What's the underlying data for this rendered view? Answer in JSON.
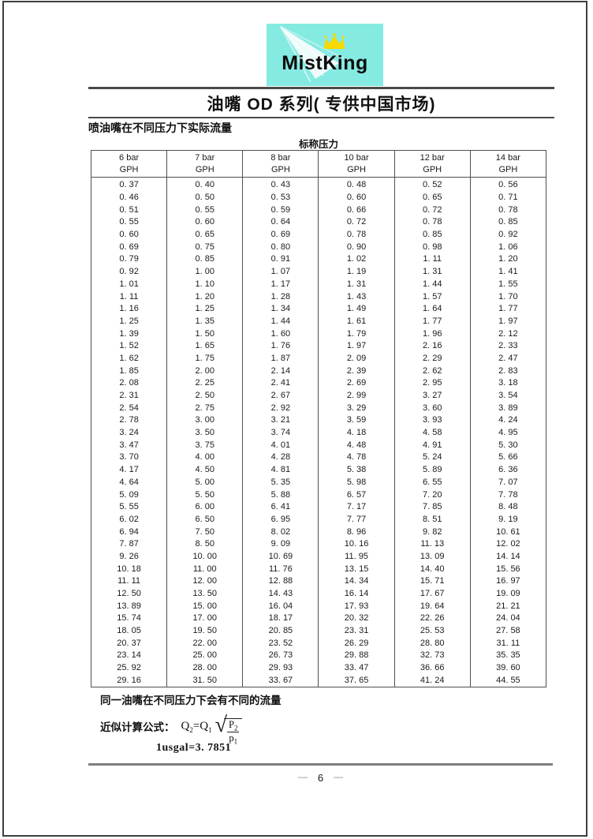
{
  "logo": {
    "brand": "MistKing",
    "bg_color": "#85eae2",
    "crown_color": "#f7d900",
    "icons": [
      "mist-spray-icon",
      "crown-icon"
    ]
  },
  "title": "油嘴 OD 系列( 专供中国市场)",
  "subtitle": "喷油嘴在不同压力下实际流量",
  "table": {
    "caption": "标称压力",
    "columns": [
      {
        "pressure": "6 bar",
        "unit": "GPH"
      },
      {
        "pressure": "7 bar",
        "unit": "GPH"
      },
      {
        "pressure": "8 bar",
        "unit": "GPH"
      },
      {
        "pressure": "10 bar",
        "unit": "GPH"
      },
      {
        "pressure": "12 bar",
        "unit": "GPH"
      },
      {
        "pressure": "14 bar",
        "unit": "GPH"
      }
    ],
    "rows": [
      [
        "0. 37",
        "0. 40",
        "0. 43",
        "0. 48",
        "0. 52",
        "0. 56"
      ],
      [
        "0. 46",
        "0. 50",
        "0. 53",
        "0. 60",
        "0. 65",
        "0. 71"
      ],
      [
        "0. 51",
        "0. 55",
        "0. 59",
        "0. 66",
        "0. 72",
        "0. 78"
      ],
      [
        "0. 55",
        "0. 60",
        "0. 64",
        "0. 72",
        "0. 78",
        "0. 85"
      ],
      [
        "0. 60",
        "0. 65",
        "0. 69",
        "0. 78",
        "0. 85",
        "0. 92"
      ],
      [
        "0. 69",
        "0. 75",
        "0. 80",
        "0. 90",
        "0. 98",
        "1. 06"
      ],
      [
        "0. 79",
        "0. 85",
        "0. 91",
        "1. 02",
        "1. 11",
        "1. 20"
      ],
      [
        "0. 92",
        "1. 00",
        "1. 07",
        "1. 19",
        "1. 31",
        "1. 41"
      ],
      [
        "1. 01",
        "1. 10",
        "1. 17",
        "1. 31",
        "1. 44",
        "1. 55"
      ],
      [
        "1. 11",
        "1. 20",
        "1. 28",
        "1. 43",
        "1. 57",
        "1. 70"
      ],
      [
        "1. 16",
        "1. 25",
        "1. 34",
        "1. 49",
        "1. 64",
        "1. 77"
      ],
      [
        "1. 25",
        "1. 35",
        "1. 44",
        "1. 61",
        "1. 77",
        "1. 97"
      ],
      [
        "1. 39",
        "1. 50",
        "1. 60",
        "1. 79",
        "1. 96",
        "2. 12"
      ],
      [
        "1. 52",
        "1. 65",
        "1. 76",
        "1. 97",
        "2. 16",
        "2. 33"
      ],
      [
        "1. 62",
        "1. 75",
        "1. 87",
        "2. 09",
        "2. 29",
        "2. 47"
      ],
      [
        "1. 85",
        "2. 00",
        "2. 14",
        "2. 39",
        "2. 62",
        "2. 83"
      ],
      [
        "2. 08",
        "2. 25",
        "2. 41",
        "2. 69",
        "2. 95",
        "3. 18"
      ],
      [
        "2. 31",
        "2. 50",
        "2. 67",
        "2. 99",
        "3. 27",
        "3. 54"
      ],
      [
        "2. 54",
        "2. 75",
        "2. 92",
        "3. 29",
        "3. 60",
        "3. 89"
      ],
      [
        "2. 78",
        "3. 00",
        "3. 21",
        "3. 59",
        "3. 93",
        "4. 24"
      ],
      [
        "3. 24",
        "3. 50",
        "3. 74",
        "4. 18",
        "4. 58",
        "4. 95"
      ],
      [
        "3. 47",
        "3. 75",
        "4. 01",
        "4. 48",
        "4. 91",
        "5. 30"
      ],
      [
        "3. 70",
        "4. 00",
        "4. 28",
        "4. 78",
        "5. 24",
        "5. 66"
      ],
      [
        "4. 17",
        "4. 50",
        "4. 81",
        "5. 38",
        "5. 89",
        "6. 36"
      ],
      [
        "4. 64",
        "5. 00",
        "5. 35",
        "5. 98",
        "6. 55",
        "7. 07"
      ],
      [
        "5. 09",
        "5. 50",
        "5. 88",
        "6. 57",
        "7. 20",
        "7. 78"
      ],
      [
        "5. 55",
        "6. 00",
        "6. 41",
        "7. 17",
        "7. 85",
        "8. 48"
      ],
      [
        "6. 02",
        "6. 50",
        "6. 95",
        "7. 77",
        "8. 51",
        "9. 19"
      ],
      [
        "6. 94",
        "7. 50",
        "8. 02",
        "8. 96",
        "9. 82",
        "10. 61"
      ],
      [
        "7. 87",
        "8. 50",
        "9. 09",
        "10. 16",
        "11. 13",
        "12. 02"
      ],
      [
        "9. 26",
        "10. 00",
        "10. 69",
        "11. 95",
        "13. 09",
        "14. 14"
      ],
      [
        "10. 18",
        "11. 00",
        "11. 76",
        "13. 15",
        "14. 40",
        "15. 56"
      ],
      [
        "11. 11",
        "12. 00",
        "12. 88",
        "14. 34",
        "15. 71",
        "16. 97"
      ],
      [
        "12. 50",
        "13. 50",
        "14. 43",
        "16. 14",
        "17. 67",
        "19. 09"
      ],
      [
        "13. 89",
        "15. 00",
        "16. 04",
        "17. 93",
        "19. 64",
        "21. 21"
      ],
      [
        "15. 74",
        "17. 00",
        "18. 17",
        "20. 32",
        "22. 26",
        "24. 04"
      ],
      [
        "18. 05",
        "19. 50",
        "20. 85",
        "23. 31",
        "25. 53",
        "27. 58"
      ],
      [
        "20. 37",
        "22. 00",
        "23. 52",
        "26. 29",
        "28. 80",
        "31. 11"
      ],
      [
        "23. 14",
        "25. 00",
        "26. 73",
        "29. 88",
        "32. 73",
        "35. 35"
      ],
      [
        "25. 92",
        "28. 00",
        "29. 93",
        "33. 47",
        "36. 66",
        "39. 60"
      ],
      [
        "29. 16",
        "31. 50",
        "33. 67",
        "37. 65",
        "41. 24",
        "44. 55"
      ]
    ]
  },
  "notes": {
    "note1": "同一油嘴在不同压力下会有不同的流量",
    "formula_label": "近似计算公式：",
    "formula": {
      "lhs": "Q",
      "lhs_sub": "2",
      "mid": "=Q",
      "mid_sub": "1",
      "radical": "√",
      "num": "P",
      "num_sub": "2",
      "den": "p",
      "den_sub": "1"
    },
    "usgal": "1usgal=3. 7851"
  },
  "footer": {
    "page_number": "6",
    "dash": "—"
  }
}
